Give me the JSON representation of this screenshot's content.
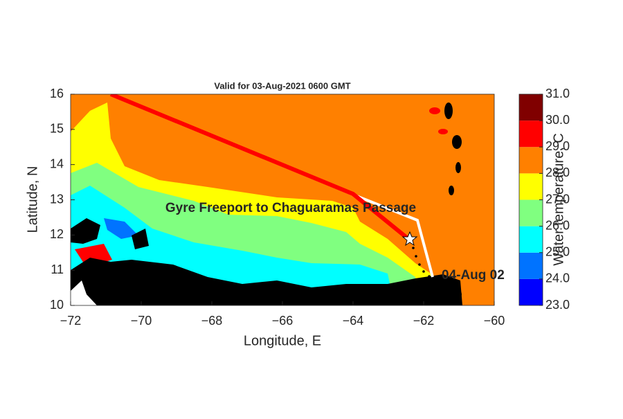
{
  "chart_data": {
    "type": "map",
    "title": "Valid for 03-Aug-2021 0600 GMT",
    "xlabel": "Longitude, E",
    "ylabel": "Latitude, N",
    "xlim": [
      -72,
      -60
    ],
    "ylim": [
      10,
      16
    ],
    "xticks": [
      {
        "value": -72,
        "label": "−72"
      },
      {
        "value": -70,
        "label": "−70"
      },
      {
        "value": -68,
        "label": "−68"
      },
      {
        "value": -66,
        "label": "−66"
      },
      {
        "value": -64,
        "label": "−64"
      },
      {
        "value": -62,
        "label": "−62"
      },
      {
        "value": -60,
        "label": "−60"
      }
    ],
    "yticks": [
      10,
      11,
      12,
      13,
      14,
      15,
      16
    ],
    "annotations": {
      "route": "Gyre Freeport to Chaguaramas Passage",
      "time_marker": "04-Aug 02"
    },
    "colorbar": {
      "label": "Water temperature, C",
      "lim": [
        23,
        31
      ],
      "ticks": [
        {
          "value": 23,
          "label": "23.0"
        },
        {
          "value": 24,
          "label": "24.0"
        },
        {
          "value": 25,
          "label": "25.0"
        },
        {
          "value": 26,
          "label": "26.0"
        },
        {
          "value": 27,
          "label": "27.0"
        },
        {
          "value": 28,
          "label": "28.0"
        },
        {
          "value": 29,
          "label": "29.0"
        },
        {
          "value": 30,
          "label": "30.0"
        },
        {
          "value": 31,
          "label": "31.0"
        }
      ],
      "colors": [
        "#0000ff",
        "#0073ff",
        "#00ffff",
        "#80ff80",
        "#ffff00",
        "#ff8000",
        "#ff0000",
        "#800000"
      ]
    }
  }
}
